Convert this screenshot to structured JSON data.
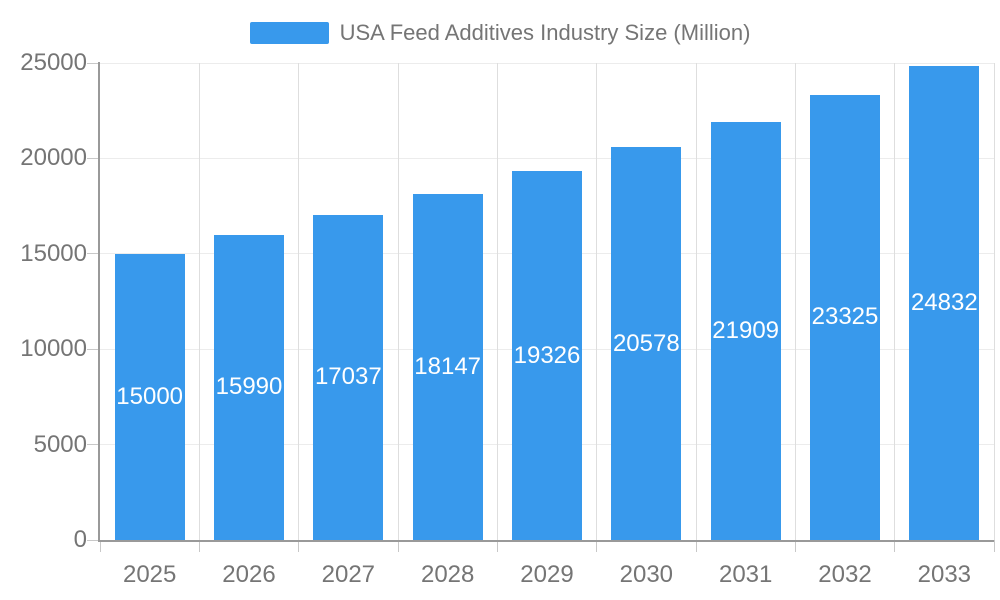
{
  "chart_data": {
    "type": "bar",
    "title": "USA Feed Additives Industry Size (Million)",
    "series_name": "USA Feed Additives Industry Size (Million)",
    "categories": [
      "2025",
      "2026",
      "2027",
      "2028",
      "2029",
      "2030",
      "2031",
      "2032",
      "2033"
    ],
    "values": [
      15000,
      15990,
      17037,
      18147,
      19326,
      20578,
      21909,
      23325,
      24832
    ],
    "ylim": [
      0,
      25000
    ],
    "y_ticks": [
      0,
      5000,
      10000,
      15000,
      20000,
      25000
    ],
    "grid": true,
    "legend_position": "top-center",
    "value_labels": "white, centered vertically inside each bar"
  },
  "colors": {
    "bar": "#3899ec",
    "axis_line": "#999999",
    "h_gridline": "#ececec",
    "v_gridline": "#dedede",
    "tick_mark": "#c8c8c8",
    "label_text": "#757575",
    "value_text": "#ffffff",
    "background": "#ffffff"
  }
}
